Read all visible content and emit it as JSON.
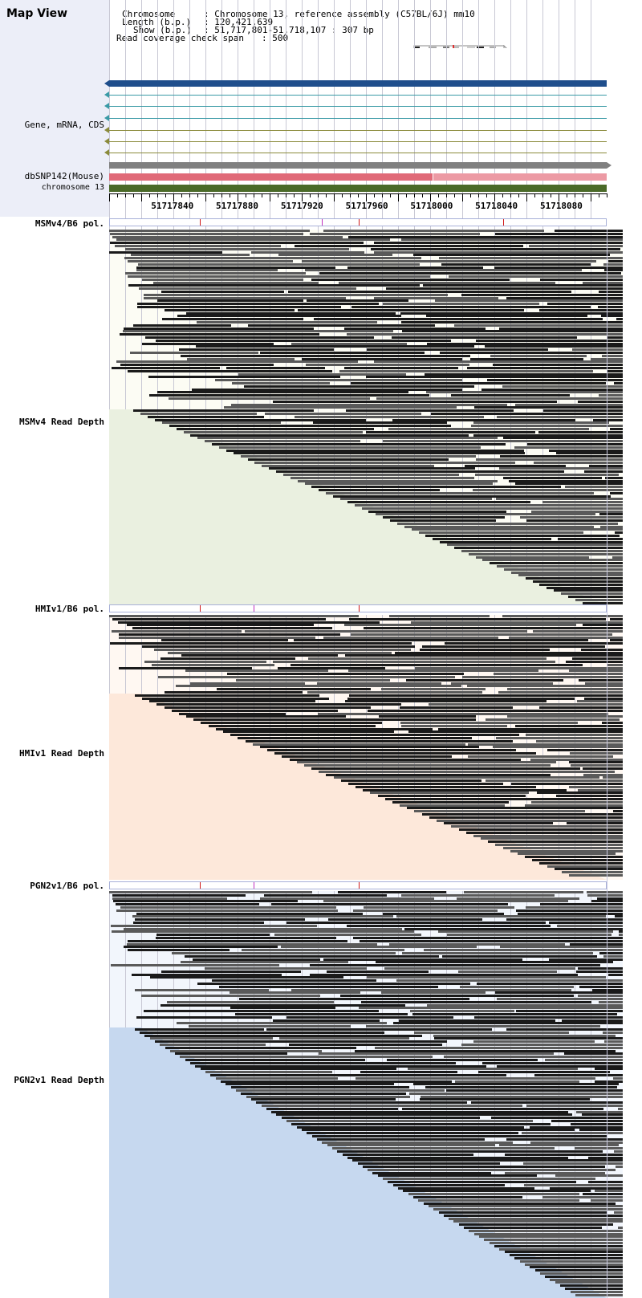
{
  "window_title": "Map View",
  "header": {
    "chromosome_key": "Chromosome",
    "chromosome_value": ": Chromosome 13, reference assembly (C57BL/6J) mm10",
    "length_key": "Length (b.p.)",
    "length_value": ": 120,421,639",
    "show_key": "Show (b.p.)",
    "show_value": ": 51,717,801-51,718,107 : 307 bp",
    "span_key": "Read coverage check span",
    "span_value": ": 500"
  },
  "tracks": {
    "gene_label": "Gene, mRNA, CDS",
    "snp_label": "dbSNP142(Mouse)",
    "chrom_label": "chromosome 13"
  },
  "ruler": {
    "ticks": [
      "51717840",
      "51717880",
      "51717920",
      "51717960",
      "51718000",
      "51718040",
      "51718080"
    ],
    "start_bp": 51717801,
    "end_bp": 51718107
  },
  "sections": [
    {
      "id": "msmv4",
      "pol_label": "MSMv4/B6 pol.",
      "depth_label": "MSMv4 Read Depth",
      "pol_mark_bp": [
        51717857,
        51717932,
        51717955,
        51718044
      ],
      "fill_color": "#eaf0e0",
      "shade_color": "#fcfcf4"
    },
    {
      "id": "hmiv1",
      "pol_label": "HMIv1/B6 pol.",
      "depth_label": "HMIv1 Read Depth",
      "pol_mark_bp": [
        51717857,
        51717890,
        51717955
      ],
      "fill_color": "#fde8da",
      "shade_color": "#fff8f2"
    },
    {
      "id": "pgn2v1",
      "pol_label": "PGN2v1/B6 pol.",
      "depth_label": "PGN2v1 Read Depth",
      "pol_mark_bp": [
        51717857,
        51717890,
        51717955
      ],
      "fill_color": "#c6d8ef",
      "shade_color": "#f2f6fc"
    }
  ],
  "colors": {
    "gene_main": "#1f4e8c",
    "mrna_teal": "#3a9aa6",
    "cds_olive": "#8a8a3a",
    "gray_bar": "#808080",
    "snp_red": "#e06a78",
    "snp_pink": "#ec9aa4",
    "chrom_green": "#4a6a28",
    "pol_mark_red": "#d01818",
    "pol_mark_magenta": "#c030c0"
  }
}
